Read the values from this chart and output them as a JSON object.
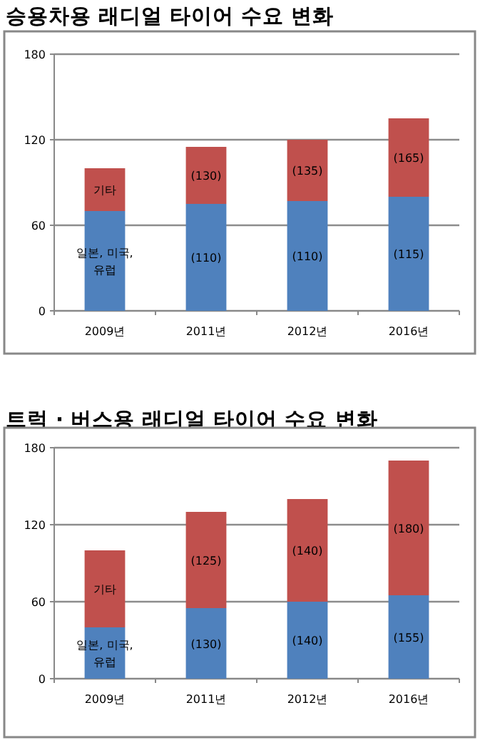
{
  "chart_data": [
    {
      "type": "bar",
      "title": "승용차용 래디얼 타이어 수요 변화",
      "stacked": true,
      "categories": [
        "2009년",
        "2011년",
        "2012년",
        "2016년"
      ],
      "ylim": [
        0,
        180
      ],
      "yticks": [
        0,
        60,
        120,
        180
      ],
      "grid": "y",
      "legend": false,
      "series": [
        {
          "name": "일본, 미국, 유럽",
          "color": "#4f81bd",
          "values": [
            70,
            75,
            77,
            80
          ]
        },
        {
          "name": "기타",
          "color": "#c0504d",
          "values": [
            30,
            40,
            43,
            55
          ]
        }
      ],
      "annotations": [
        "(110)",
        "(130)",
        "(110)",
        "(135)",
        "(115)",
        "(165)"
      ]
    },
    {
      "type": "bar",
      "title": "트럭 · 버스용 래디얼 타이어 수요 변화",
      "stacked": true,
      "categories": [
        "2009년",
        "2011년",
        "2012년",
        "2016년"
      ],
      "ylim": [
        0,
        180
      ],
      "yticks": [
        0,
        60,
        120,
        180
      ],
      "grid": "y",
      "legend": false,
      "series": [
        {
          "name": "일본, 미국, 유럽",
          "color": "#4f81bd",
          "values": [
            40,
            55,
            60,
            65
          ]
        },
        {
          "name": "기타",
          "color": "#c0504d",
          "values": [
            60,
            75,
            80,
            105
          ]
        }
      ],
      "annotations": [
        "(130)",
        "(125)",
        "(140)",
        "(140)",
        "(155)",
        "(180)"
      ]
    }
  ]
}
